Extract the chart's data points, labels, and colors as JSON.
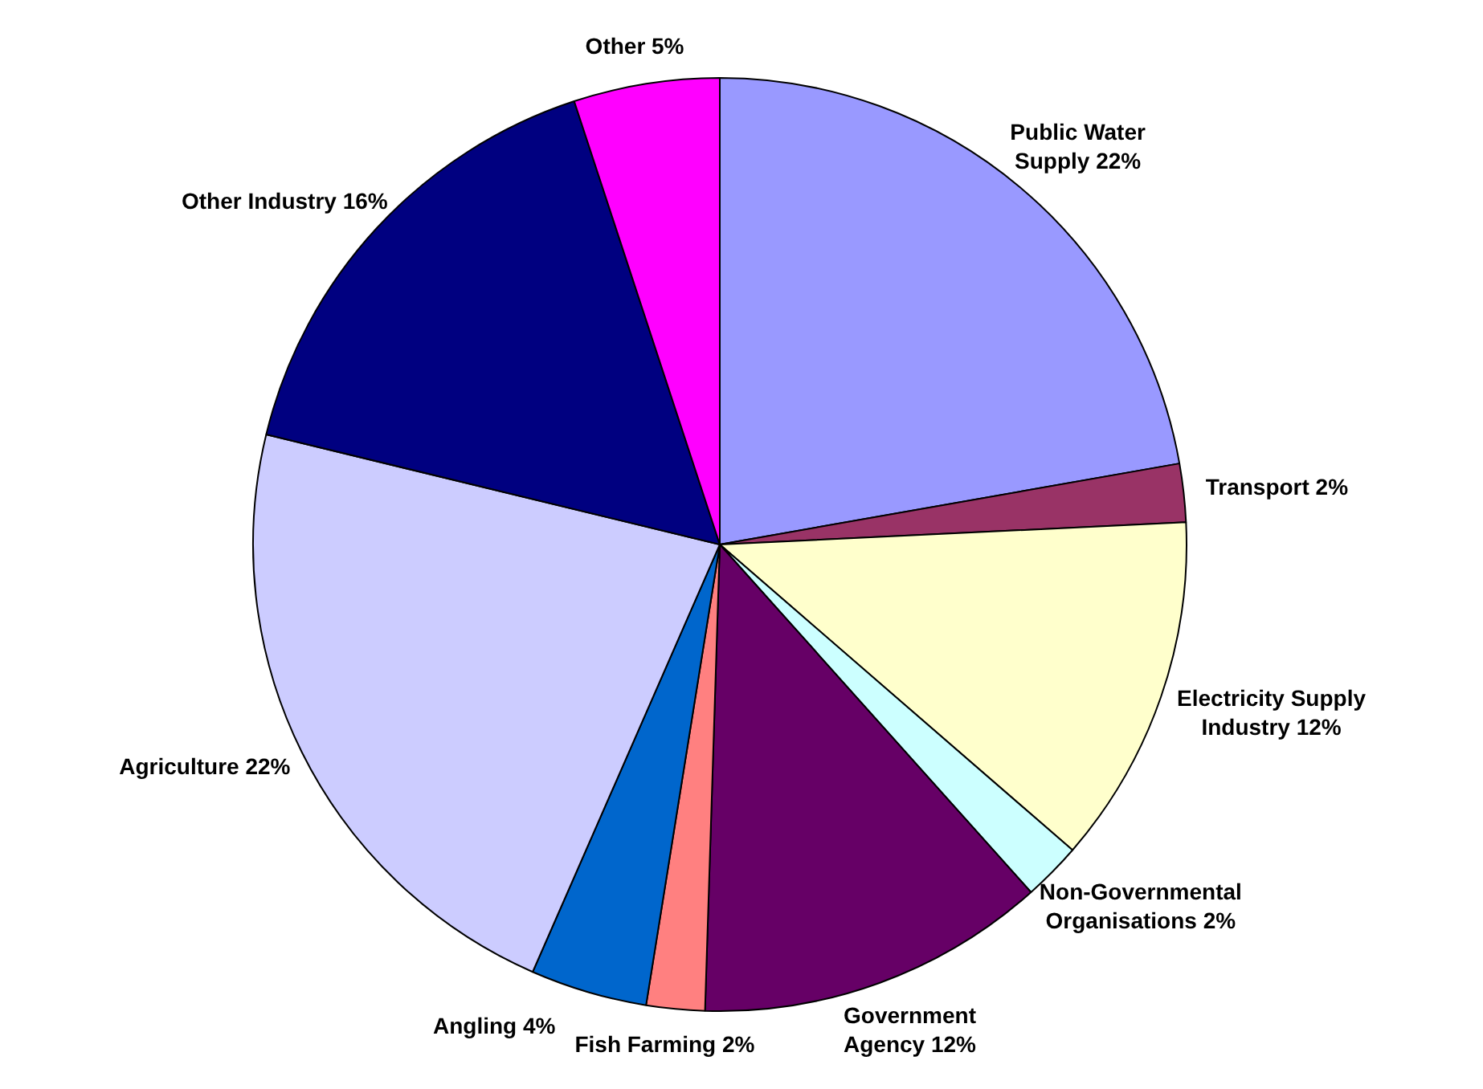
{
  "chart_data": {
    "type": "pie",
    "categories": [
      "Public Water Supply",
      "Transport",
      "Electricity Supply Industry",
      "Non-Governmental Organisations",
      "Government Agency",
      "Fish Farming",
      "Angling",
      "Agriculture",
      "Other Industry",
      "Other"
    ],
    "values": [
      22,
      2,
      12,
      2,
      12,
      2,
      4,
      22,
      16,
      5
    ],
    "value_labels": [
      "22%",
      "2%",
      "12%",
      "2%",
      "12%",
      "2%",
      "4%",
      "22%",
      "16%",
      "5%"
    ],
    "colors": [
      "#9999ff",
      "#993366",
      "#ffffcc",
      "#ccffff",
      "#660066",
      "#ff8080",
      "#0066cc",
      "#ccccff",
      "#000080",
      "#ff00ff"
    ],
    "legend": false
  }
}
